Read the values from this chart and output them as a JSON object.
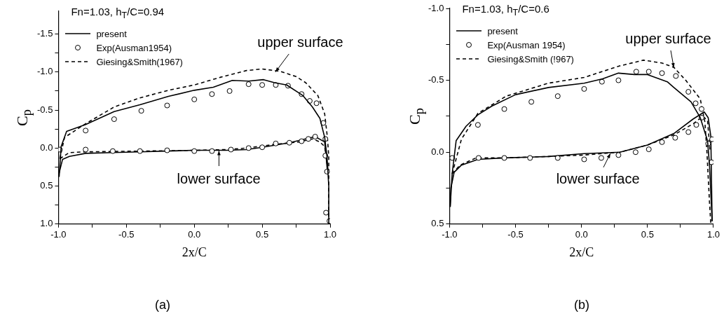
{
  "chart_data": [
    {
      "type": "line",
      "title": "Fn=1.03, h$_{T}$/C=0.94",
      "xlabel": "2x/C",
      "ylabel": "C$_{p}$",
      "xlim": [
        -1,
        1
      ],
      "ylim": [
        1.0,
        -1.8
      ],
      "xticks": [
        {
          "value": -1,
          "label": "-1.0"
        },
        {
          "value": -0.75,
          "label": null
        },
        {
          "value": -0.5,
          "label": "-0.5"
        },
        {
          "value": -0.25,
          "label": null
        },
        {
          "value": 0,
          "label": "0.0"
        },
        {
          "value": 0.25,
          "label": null
        },
        {
          "value": 0.5,
          "label": "0.5"
        },
        {
          "value": 0.75,
          "label": null
        },
        {
          "value": 1,
          "label": "1.0"
        }
      ],
      "yticks": [
        {
          "value": -1.5,
          "label": "-1.5"
        },
        {
          "value": -1.25,
          "label": null
        },
        {
          "value": -1,
          "label": "-1.0"
        },
        {
          "value": -0.75,
          "label": null
        },
        {
          "value": -0.5,
          "label": "-0.5"
        },
        {
          "value": -0.25,
          "label": null
        },
        {
          "value": 0,
          "label": "0.0"
        },
        {
          "value": 0.25,
          "label": null
        },
        {
          "value": 0.5,
          "label": "0.5"
        },
        {
          "value": 0.75,
          "label": null
        },
        {
          "value": 1,
          "label": "1.0"
        }
      ],
      "grid": false,
      "legend": "top left",
      "series": [
        {
          "name": "present",
          "type": "line",
          "color": "#000000",
          "line_style": "solid",
          "marker": "none",
          "x": [
            -0.995,
            -0.98,
            -0.94,
            -0.8,
            -0.59,
            -0.4,
            -0.19,
            0.0,
            0.14,
            0.28,
            0.4,
            0.51,
            0.59,
            0.68,
            0.8,
            0.87,
            0.925,
            0.96,
            0.977,
            0.99,
            0.99
          ],
          "values": [
            0.38,
            -0.02,
            -0.22,
            -0.31,
            -0.48,
            -0.57,
            -0.68,
            -0.76,
            -0.8,
            -0.89,
            -0.88,
            -0.9,
            -0.86,
            -0.83,
            -0.69,
            -0.54,
            -0.39,
            -0.14,
            0.11,
            0.5,
            1.0
          ]
        },
        {
          "name": "Exp(Ausman1954)",
          "type": "scatter",
          "color": "#000000",
          "marker": "circle",
          "x": [
            -0.99,
            -0.8,
            -0.59,
            -0.39,
            -0.2,
            0.0,
            0.13,
            0.26,
            0.4,
            0.5,
            0.6,
            0.69,
            0.79,
            0.85,
            0.9,
            0.95,
            0.965,
            0.965,
            0.977,
            0.97,
            0.995,
            0.89,
            0.84,
            0.79,
            0.7,
            0.6,
            0.5,
            0.4,
            0.27,
            0.13,
            0.0,
            -0.2,
            -0.4,
            -0.6,
            -0.8
          ],
          "values": [
            0.02,
            -0.23,
            -0.38,
            -0.49,
            -0.56,
            -0.64,
            -0.71,
            -0.75,
            -0.84,
            -0.83,
            -0.83,
            -0.82,
            -0.71,
            -0.62,
            -0.59,
            -0.33,
            -0.12,
            0.1,
            0.31,
            0.85,
            0.96,
            -0.15,
            -0.12,
            -0.09,
            -0.07,
            -0.06,
            -0.01,
            0.0,
            0.02,
            0.04,
            0.04,
            0.03,
            0.04,
            0.04,
            0.02
          ]
        },
        {
          "name": "Giesing&Smith(1967)",
          "type": "line",
          "color": "#000000",
          "line_style": "dashed",
          "marker": "none",
          "x": [
            -0.99,
            -0.955,
            -0.8,
            -0.59,
            -0.4,
            -0.19,
            0.0,
            0.19,
            0.385,
            0.5,
            0.63,
            0.75,
            0.82,
            0.91,
            0.96,
            0.98,
            0.99,
            0.99
          ],
          "values": [
            0.14,
            -0.14,
            -0.32,
            -0.54,
            -0.66,
            -0.76,
            -0.83,
            -0.93,
            -1.02,
            -1.04,
            -1.01,
            -0.94,
            -0.86,
            -0.69,
            -0.45,
            -0.14,
            0.11,
            1.0
          ]
        },
        {
          "type": "line",
          "color": "#000000",
          "line_style": "solid",
          "marker": "none",
          "x": [
            -0.998,
            -0.97,
            -0.92,
            -0.8,
            -0.6,
            -0.4,
            -0.21,
            0.0,
            0.245,
            0.385,
            0.5,
            0.7,
            0.89,
            0.96,
            0.98
          ],
          "values": [
            0.35,
            0.15,
            0.11,
            0.07,
            0.06,
            0.05,
            0.04,
            0.03,
            0.03,
            0.02,
            -0.01,
            -0.07,
            -0.15,
            -0.08,
            0.3
          ]
        },
        {
          "type": "line",
          "color": "#000000",
          "line_style": "dashed",
          "marker": "none",
          "x": [
            -0.99,
            -0.92,
            -0.8,
            -0.4,
            0.0,
            0.245,
            0.385,
            0.6,
            0.77,
            0.87,
            0.925,
            0.96,
            0.985
          ],
          "values": [
            0.14,
            0.06,
            0.05,
            0.04,
            0.03,
            0.02,
            0.0,
            -0.05,
            -0.08,
            -0.12,
            -0.08,
            -0.02,
            0.3
          ]
        }
      ],
      "annotations": [
        {
          "text": "upper surface",
          "x": 0.6,
          "y": -1.0
        },
        {
          "text": "lower surface",
          "x": 0.18,
          "y": 0.03
        },
        "(a)"
      ]
    },
    {
      "type": "line",
      "title": "Fn=1.03, h$_{T}$/C=0.6",
      "xlabel": "2x/C",
      "ylabel": "C$_{p}$",
      "xlim": [
        -1,
        1
      ],
      "ylim": [
        0.5,
        -1.0
      ],
      "xticks": [
        {
          "value": -1,
          "label": "-1.0"
        },
        {
          "value": -0.75,
          "label": null
        },
        {
          "value": -0.5,
          "label": "-0.5"
        },
        {
          "value": -0.25,
          "label": null
        },
        {
          "value": 0,
          "label": "0.0"
        },
        {
          "value": 0.25,
          "label": null
        },
        {
          "value": 0.5,
          "label": "0.5"
        },
        {
          "value": 0.75,
          "label": null
        },
        {
          "value": 1,
          "label": "1.0"
        }
      ],
      "yticks": [
        {
          "value": -1,
          "label": "-1.0"
        },
        {
          "value": -0.75,
          "label": null
        },
        {
          "value": -0.5,
          "label": "-0.5"
        },
        {
          "value": -0.25,
          "label": null
        },
        {
          "value": 0,
          "label": "0.0"
        },
        {
          "value": 0.25,
          "label": null
        },
        {
          "value": 0.5,
          "label": "0.5"
        }
      ],
      "grid": false,
      "legend": "top left",
      "series": [
        {
          "name": "present",
          "type": "line",
          "color": "#000000",
          "line_style": "solid",
          "marker": "none",
          "x": [
            -0.995,
            -0.98,
            -0.95,
            -0.875,
            -0.785,
            -0.68,
            -0.5,
            -0.25,
            0.02,
            0.16,
            0.28,
            0.4,
            0.5,
            0.65,
            0.7,
            0.83,
            0.9,
            0.955,
            0.97,
            0.99
          ],
          "values": [
            0.38,
            0.15,
            -0.08,
            -0.18,
            -0.26,
            -0.32,
            -0.4,
            -0.45,
            -0.48,
            -0.51,
            -0.55,
            -0.54,
            -0.54,
            -0.49,
            -0.45,
            -0.35,
            -0.24,
            -0.08,
            0.09,
            0.48
          ]
        },
        {
          "name": "Exp(Ausman 1954)",
          "type": "scatter",
          "color": "#000000",
          "marker": "circle",
          "x": [
            -0.98,
            -0.785,
            -0.585,
            -0.38,
            -0.18,
            0.02,
            0.155,
            0.28,
            0.415,
            0.51,
            0.61,
            0.715,
            0.81,
            0.865,
            0.91,
            0.91,
            0.96,
            0.99,
            0.985,
            0.87,
            0.81,
            0.71,
            0.61,
            0.51,
            0.41,
            0.28,
            0.15,
            0.02,
            -0.18,
            -0.39,
            -0.585,
            -0.78
          ],
          "values": [
            0.04,
            -0.19,
            -0.3,
            -0.35,
            -0.39,
            -0.44,
            -0.49,
            -0.5,
            -0.56,
            -0.56,
            -0.55,
            -0.53,
            -0.42,
            -0.34,
            -0.3,
            -0.24,
            -0.06,
            -0.09,
            0.07,
            -0.19,
            -0.14,
            -0.1,
            -0.07,
            -0.02,
            0.0,
            0.02,
            0.04,
            0.05,
            0.04,
            0.04,
            0.04,
            0.04
          ]
        },
        {
          "name": "Giesing&Smith (!967)",
          "type": "line",
          "color": "#000000",
          "line_style": "dashed",
          "marker": "none",
          "x": [
            -0.98,
            -0.91,
            -0.785,
            -0.57,
            -0.25,
            0.02,
            0.29,
            0.47,
            0.61,
            0.7,
            0.79,
            0.9,
            0.935,
            0.95,
            0.97,
            0.98
          ],
          "values": [
            0.15,
            -0.09,
            -0.27,
            -0.39,
            -0.48,
            -0.52,
            -0.6,
            -0.64,
            -0.62,
            -0.59,
            -0.5,
            -0.37,
            -0.21,
            -0.01,
            0.35,
            0.5
          ]
        },
        {
          "type": "line",
          "color": "#000000",
          "line_style": "solid",
          "marker": "none",
          "x": [
            -0.995,
            -0.99,
            -0.965,
            -0.91,
            -0.785,
            -0.59,
            -0.25,
            0.02,
            0.29,
            0.5,
            0.7,
            0.845,
            0.93,
            0.96,
            0.98,
            0.99
          ],
          "values": [
            0.38,
            0.25,
            0.14,
            0.09,
            0.05,
            0.04,
            0.03,
            0.01,
            0.0,
            -0.05,
            -0.13,
            -0.23,
            -0.28,
            -0.24,
            -0.11,
            0.48
          ]
        },
        {
          "type": "line",
          "color": "#000000",
          "line_style": "dashed",
          "marker": "none",
          "x": [
            -0.98,
            -0.92,
            -0.8,
            -0.59,
            -0.25,
            0.02,
            0.29,
            0.5,
            0.7,
            0.85,
            0.92,
            0.955,
            0.975
          ],
          "values": [
            0.15,
            0.09,
            0.04,
            0.04,
            0.03,
            0.02,
            0.0,
            -0.05,
            -0.12,
            -0.2,
            -0.25,
            -0.22,
            0.0
          ]
        }
      ],
      "annotations": [
        {
          "text": "upper surface",
          "x": 0.7,
          "y": -0.59
        },
        {
          "text": "lower surface",
          "x": 0.22,
          "y": 0.01
        },
        "(b)"
      ]
    }
  ]
}
